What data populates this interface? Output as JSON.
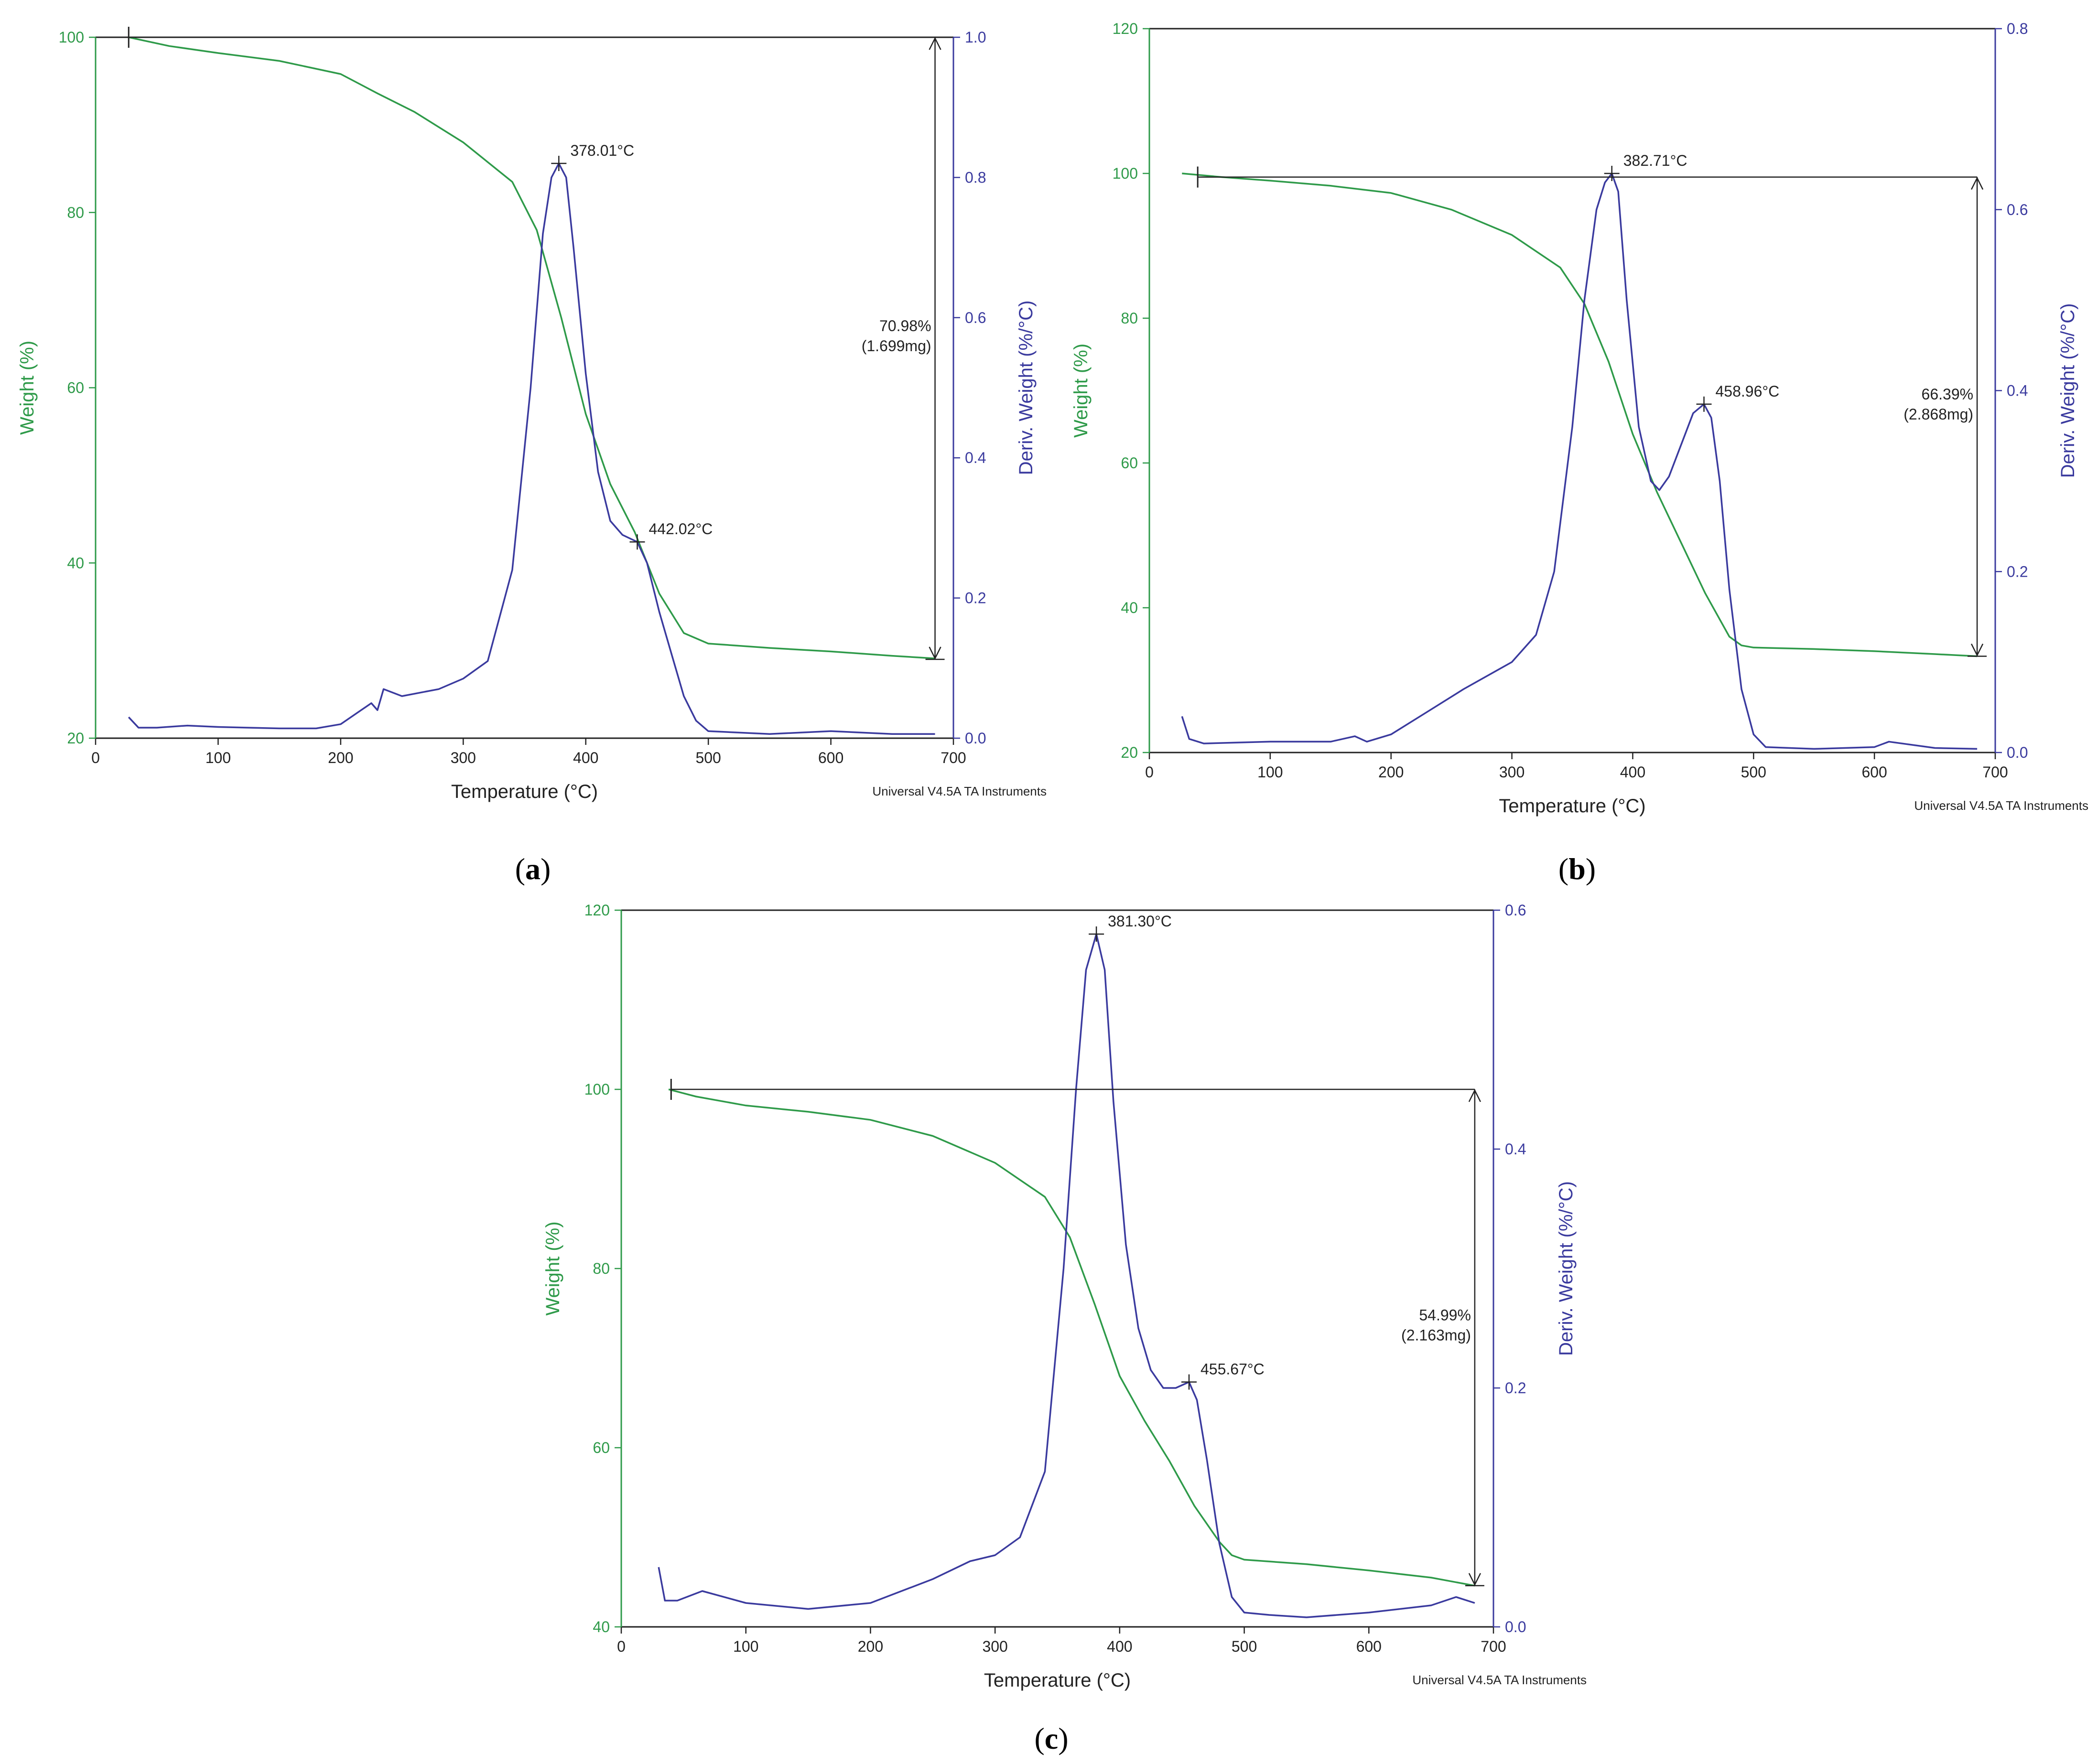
{
  "colors": {
    "weight": "#2e9a49",
    "deriv": "#3a3a9e",
    "frame": "#222222"
  },
  "chart_data": [
    {
      "type": "line",
      "label": "a",
      "xlabel": "Temperature (°C)",
      "ylabel": "Weight (%)",
      "y2label": "Deriv. Weight (%/°C)",
      "xlim": [
        0,
        700
      ],
      "ylim": [
        20,
        100
      ],
      "y2lim": [
        0,
        1.0
      ],
      "xticks": [
        "0",
        "100",
        "200",
        "300",
        "400",
        "500",
        "600",
        "700"
      ],
      "yticks": [
        "20",
        "40",
        "60",
        "80",
        "100"
      ],
      "y2ticks": [
        "0.0",
        "0.2",
        "0.4",
        "0.6",
        "0.8",
        "1.0"
      ],
      "footer": "Universal V4.5A TA Instruments",
      "series": [
        {
          "axis": "left",
          "x": [
            27,
            60,
            100,
            150,
            200,
            230,
            260,
            300,
            340,
            360,
            380,
            400,
            420,
            440,
            460,
            480,
            500,
            550,
            600,
            650,
            685
          ],
          "y": [
            100,
            99,
            98.2,
            97.3,
            95.8,
            93.6,
            91.5,
            88,
            83.5,
            78,
            68,
            57,
            49,
            43.5,
            36.5,
            32,
            30.8,
            30.3,
            29.9,
            29.4,
            29.1
          ]
        },
        {
          "axis": "right",
          "x": [
            27,
            35,
            50,
            75,
            100,
            150,
            180,
            200,
            225,
            230,
            235,
            250,
            280,
            300,
            320,
            340,
            355,
            365,
            372,
            378,
            384,
            390,
            400,
            410,
            420,
            430,
            442,
            450,
            460,
            470,
            480,
            490,
            500,
            550,
            600,
            650,
            685
          ],
          "y": [
            0.03,
            0.015,
            0.015,
            0.018,
            0.016,
            0.014,
            0.014,
            0.02,
            0.05,
            0.04,
            0.07,
            0.06,
            0.07,
            0.085,
            0.11,
            0.24,
            0.5,
            0.72,
            0.8,
            0.82,
            0.8,
            0.7,
            0.52,
            0.38,
            0.31,
            0.29,
            0.28,
            0.25,
            0.18,
            0.12,
            0.06,
            0.025,
            0.01,
            0.006,
            0.01,
            0.006,
            0.006
          ]
        }
      ],
      "mass_loss": {
        "x_start": 27,
        "x_end": 685,
        "weight_start": 100,
        "weight_end": 29,
        "percent": "70.98%",
        "mass": "(1.699mg)"
      },
      "peaks": [
        {
          "x": 378.01,
          "y": 0.82,
          "label": "378.01°C"
        },
        {
          "x": 442.02,
          "y": 0.28,
          "label": "442.02°C"
        }
      ]
    },
    {
      "type": "line",
      "label": "b",
      "xlabel": "Temperature (°C)",
      "ylabel": "Weight (%)",
      "y2label": "Deriv. Weight (%/°C)",
      "xlim": [
        0,
        700
      ],
      "ylim": [
        20,
        120
      ],
      "y2lim": [
        0,
        0.8
      ],
      "xticks": [
        "0",
        "100",
        "200",
        "300",
        "400",
        "500",
        "600",
        "700"
      ],
      "yticks": [
        "20",
        "40",
        "60",
        "80",
        "100",
        "120"
      ],
      "y2ticks": [
        "0.0",
        "0.2",
        "0.4",
        "0.6",
        "0.8"
      ],
      "footer": "Universal V4.5A TA Instruments",
      "series": [
        {
          "axis": "left",
          "x": [
            27,
            60,
            100,
            150,
            200,
            250,
            300,
            340,
            360,
            380,
            400,
            420,
            440,
            460,
            480,
            490,
            500,
            550,
            600,
            650,
            685
          ],
          "y": [
            100,
            99.5,
            99,
            98.3,
            97.3,
            95,
            91.5,
            87,
            82,
            74,
            64,
            56,
            49,
            42,
            36,
            34.8,
            34.5,
            34.3,
            34,
            33.6,
            33.3
          ]
        },
        {
          "axis": "right",
          "x": [
            27,
            33,
            45,
            100,
            150,
            170,
            180,
            200,
            230,
            260,
            300,
            320,
            335,
            350,
            360,
            370,
            377,
            382.71,
            388,
            395,
            405,
            415,
            422,
            430,
            440,
            450,
            458.96,
            465,
            472,
            480,
            490,
            500,
            510,
            550,
            600,
            612,
            650,
            685
          ],
          "y": [
            0.04,
            0.015,
            0.01,
            0.012,
            0.012,
            0.018,
            0.012,
            0.02,
            0.045,
            0.07,
            0.1,
            0.13,
            0.2,
            0.36,
            0.5,
            0.6,
            0.63,
            0.64,
            0.62,
            0.5,
            0.36,
            0.3,
            0.29,
            0.305,
            0.34,
            0.375,
            0.385,
            0.37,
            0.3,
            0.18,
            0.07,
            0.02,
            0.006,
            0.004,
            0.006,
            0.012,
            0.005,
            0.004
          ]
        }
      ],
      "mass_loss": {
        "x_start": 40,
        "x_end": 685,
        "weight_start": 99.5,
        "weight_end": 33.3,
        "percent": "66.39%",
        "mass": "(2.868mg)"
      },
      "peaks": [
        {
          "x": 382.71,
          "y": 0.64,
          "label": "382.71°C"
        },
        {
          "x": 458.96,
          "y": 0.385,
          "label": "458.96°C"
        }
      ]
    },
    {
      "type": "line",
      "label": "c",
      "xlabel": "Temperature (°C)",
      "ylabel": "Weight (%)",
      "y2label": "Deriv. Weight (%/°C)",
      "xlim": [
        0,
        700
      ],
      "ylim": [
        40,
        120
      ],
      "y2lim": [
        0,
        0.6
      ],
      "xticks": [
        "0",
        "100",
        "200",
        "300",
        "400",
        "500",
        "600",
        "700"
      ],
      "yticks": [
        "40",
        "60",
        "80",
        "100",
        "120"
      ],
      "y2ticks": [
        "0.0",
        "0.2",
        "0.4",
        "0.6"
      ],
      "footer": "Universal V4.5A TA Instruments",
      "series": [
        {
          "axis": "left",
          "x": [
            38,
            60,
            100,
            150,
            200,
            250,
            300,
            340,
            360,
            380,
            400,
            420,
            440,
            460,
            480,
            490,
            500,
            550,
            600,
            650,
            685
          ],
          "y": [
            100,
            99.2,
            98.2,
            97.5,
            96.6,
            94.8,
            91.8,
            88,
            83.5,
            76,
            68,
            63,
            58.5,
            53.5,
            49.5,
            48,
            47.5,
            47,
            46.3,
            45.5,
            44.6
          ]
        },
        {
          "axis": "right",
          "x": [
            30,
            35,
            45,
            65,
            100,
            150,
            200,
            250,
            280,
            300,
            320,
            340,
            355,
            365,
            373,
            381.3,
            388,
            395,
            405,
            415,
            425,
            435,
            445,
            455.67,
            462,
            470,
            480,
            490,
            500,
            520,
            550,
            600,
            650,
            670,
            685
          ],
          "y": [
            0.05,
            0.022,
            0.022,
            0.03,
            0.02,
            0.015,
            0.02,
            0.04,
            0.055,
            0.06,
            0.075,
            0.13,
            0.3,
            0.45,
            0.55,
            0.58,
            0.55,
            0.44,
            0.32,
            0.25,
            0.215,
            0.2,
            0.2,
            0.205,
            0.19,
            0.14,
            0.07,
            0.025,
            0.012,
            0.01,
            0.008,
            0.012,
            0.018,
            0.025,
            0.02
          ]
        }
      ],
      "mass_loss": {
        "x_start": 40,
        "x_end": 685,
        "weight_start": 100,
        "weight_end": 44.6,
        "percent": "54.99%",
        "mass": "(2.163mg)"
      },
      "peaks": [
        {
          "x": 381.3,
          "y": 0.58,
          "label": "381.30°C"
        },
        {
          "x": 455.67,
          "y": 0.205,
          "label": "455.67°C"
        }
      ]
    }
  ]
}
